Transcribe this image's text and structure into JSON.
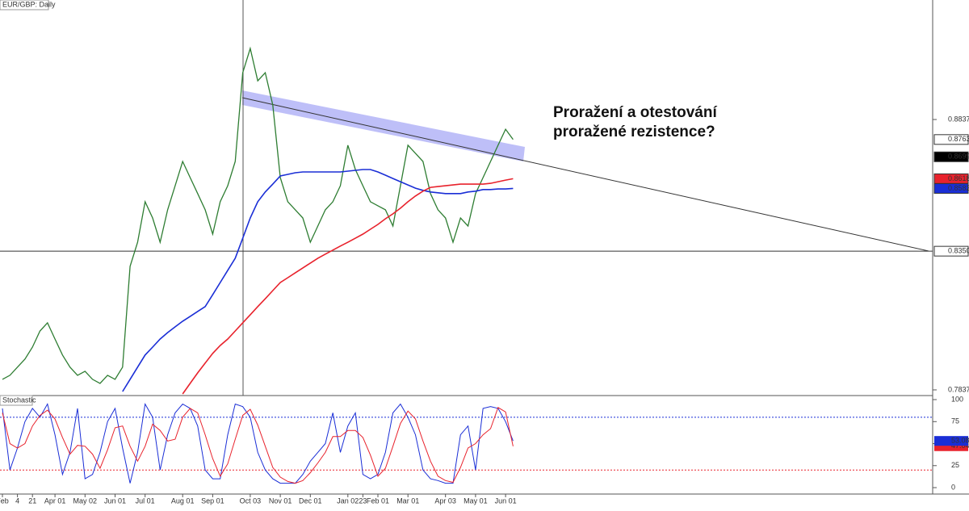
{
  "chart_data": {
    "type": "line",
    "title": "EUR/GBP: Daily",
    "annotation": [
      "Proražení a otestování",
      "proražené rezistence?"
    ],
    "categories": [
      "Feb",
      null,
      "4",
      null,
      "21",
      null,
      null,
      "Apr 01",
      null,
      null,
      null,
      "May 02",
      null,
      null,
      null,
      "Jun 01",
      null,
      null,
      null,
      "Jul 01",
      null,
      null,
      null,
      null,
      "Aug 01",
      null,
      null,
      null,
      "Sep 01",
      null,
      null,
      null,
      null,
      "Oct 03",
      null,
      null,
      null,
      "Nov 01",
      null,
      null,
      null,
      "Dec 01",
      null,
      null,
      null,
      null,
      "Jan 02",
      null,
      "23",
      null,
      "Feb 01",
      null,
      null,
      null,
      "Mar 01",
      null,
      null,
      null,
      null,
      "Apr 03",
      null,
      null,
      null,
      "May 01",
      null,
      null,
      null,
      "Jun 01",
      null
    ],
    "series": [
      {
        "color": "#2e7d32",
        "values": [
          0.7876,
          0.7891,
          0.7921,
          0.7951,
          0.7995,
          0.8055,
          0.8085,
          0.8025,
          0.7966,
          0.7921,
          0.7891,
          0.7906,
          0.7876,
          0.7861,
          0.7891,
          0.7876,
          0.7921,
          0.8294,
          0.8383,
          0.8533,
          0.8473,
          0.8383,
          0.8503,
          0.8592,
          0.8682,
          0.8622,
          0.8563,
          0.8503,
          0.8413,
          0.8533,
          0.8592,
          0.8682,
          0.901,
          0.91,
          0.898,
          0.901,
          0.8891,
          0.8622,
          0.8533,
          0.8503,
          0.8473,
          0.8383,
          0.8443,
          0.8503,
          0.8533,
          0.8592,
          0.8742,
          0.8652,
          0.8592,
          0.8533,
          0.8518,
          0.8503,
          0.8443,
          0.8592,
          0.8742,
          0.8712,
          0.8682,
          0.8563,
          0.8503,
          0.8473,
          0.8383,
          0.8473,
          0.8443,
          0.8563,
          0.8622,
          0.8682,
          0.8742,
          0.8801,
          0.8763
        ]
      },
      {
        "color": "#1a2ed6",
        "values": [
          null,
          null,
          null,
          null,
          null,
          null,
          null,
          null,
          null,
          null,
          null,
          null,
          null,
          null,
          null,
          null,
          0.7831,
          0.7876,
          0.7921,
          0.7966,
          0.7995,
          0.8025,
          0.8049,
          0.807,
          0.8091,
          0.8109,
          0.8127,
          0.8145,
          0.8189,
          0.8234,
          0.8279,
          0.8324,
          0.8398,
          0.8473,
          0.8533,
          0.8569,
          0.8598,
          0.8628,
          0.8634,
          0.864,
          0.8643,
          0.8643,
          0.8643,
          0.8643,
          0.8643,
          0.8643,
          0.8646,
          0.8649,
          0.8652,
          0.8652,
          0.8643,
          0.8631,
          0.8619,
          0.8607,
          0.8595,
          0.8583,
          0.8575,
          0.8569,
          0.8566,
          0.8563,
          0.8563,
          0.8563,
          0.8569,
          0.8572,
          0.8578,
          0.8578,
          0.858,
          0.858,
          0.8582
        ]
      },
      {
        "color": "#e8222c",
        "values": [
          null,
          null,
          null,
          null,
          null,
          null,
          null,
          null,
          null,
          null,
          null,
          null,
          null,
          null,
          null,
          null,
          null,
          null,
          null,
          null,
          null,
          null,
          null,
          null,
          0.7822,
          0.7861,
          0.79,
          0.7936,
          0.7972,
          0.8001,
          0.8025,
          0.8055,
          0.8085,
          0.8115,
          0.8145,
          0.8174,
          0.8204,
          0.8234,
          0.8252,
          0.827,
          0.8288,
          0.8306,
          0.8324,
          0.8339,
          0.8354,
          0.8369,
          0.8383,
          0.8398,
          0.8413,
          0.8431,
          0.8449,
          0.847,
          0.8488,
          0.8509,
          0.8533,
          0.8554,
          0.8572,
          0.8586,
          0.8589,
          0.8592,
          0.8595,
          0.8598,
          0.8598,
          0.8598,
          0.8598,
          0.8601,
          0.8607,
          0.8613,
          0.8618
        ]
      }
    ],
    "ylim": [
      0.7816,
      0.9279
    ],
    "yticks": [
      0.7837,
      0.8837
    ],
    "hline": {
      "value": 0.835,
      "label": "0.8350"
    },
    "price_tags": [
      {
        "value": 0.8763,
        "fill": "#ffffff",
        "text_color": "#000000"
      },
      {
        "value": 0.8699,
        "fill": "#000000",
        "text_color": "#ffffff"
      },
      {
        "value": 0.8618,
        "fill": "#e8222c",
        "text_color": "#ffffff"
      },
      {
        "value": 0.8582,
        "fill": "#1a2ed6",
        "text_color": "#ffffff"
      }
    ],
    "stochastic": {
      "title": "Stochastic",
      "ylim": [
        -7.3,
        104.6
      ],
      "yticks": [
        0,
        25,
        50,
        75,
        100
      ],
      "levels": [
        20,
        80
      ],
      "series": [
        {
          "color": "#1a2ed6",
          "values": [
            90,
            20,
            45,
            75,
            90,
            80,
            95,
            60,
            15,
            40,
            90,
            10,
            15,
            40,
            75,
            90,
            45,
            5,
            40,
            95,
            80,
            20,
            60,
            85,
            95,
            90,
            70,
            20,
            10,
            10,
            60,
            95,
            92,
            80,
            40,
            20,
            10,
            5,
            5,
            5,
            15,
            30,
            40,
            50,
            85,
            40,
            70,
            85,
            15,
            10,
            15,
            40,
            85,
            95,
            80,
            60,
            20,
            10,
            8,
            5,
            5,
            60,
            70,
            20,
            90,
            92,
            90,
            75,
            53.08
          ]
        },
        {
          "color": "#e8222c",
          "values": [
            85,
            50,
            45,
            50,
            70,
            82,
            88,
            78,
            57,
            38,
            48,
            47,
            38,
            22,
            43,
            68,
            70,
            47,
            30,
            47,
            72,
            65,
            53,
            55,
            80,
            90,
            85,
            60,
            33,
            13,
            27,
            55,
            82,
            89,
            71,
            47,
            23,
            12,
            7,
            5,
            8,
            17,
            28,
            40,
            58,
            58,
            65,
            65,
            57,
            37,
            13,
            22,
            47,
            73,
            87,
            78,
            53,
            30,
            13,
            8,
            6,
            23,
            45,
            50,
            60,
            67,
            91,
            86,
            47.04
          ]
        }
      ]
    }
  }
}
